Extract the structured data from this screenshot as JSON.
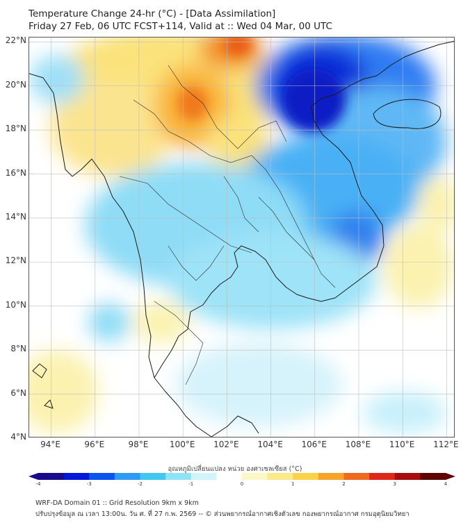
{
  "title": {
    "line1": "Temperature Change 24-hr (°C) - [Data Assimilation]",
    "line2": "Friday 27 Feb, 06 UTC FCST+114, Valid at :: Wed 04 Mar, 00 UTC"
  },
  "map": {
    "lat_labels": [
      "22°N",
      "20°N",
      "18°N",
      "16°N",
      "14°N",
      "12°N",
      "10°N",
      "8°N",
      "6°N",
      "4°N"
    ],
    "lat_values": [
      22,
      20,
      18,
      16,
      14,
      12,
      10,
      8,
      6,
      4
    ],
    "lon_labels": [
      "94°E",
      "96°E",
      "98°E",
      "100°E",
      "102°E",
      "104°E",
      "106°E",
      "108°E",
      "110°E",
      "112°E"
    ],
    "lon_values": [
      94,
      96,
      98,
      100,
      102,
      104,
      106,
      108,
      110,
      112
    ],
    "lat_range": [
      4,
      22.2
    ],
    "lon_range": [
      93,
      112.4
    ]
  },
  "colorbar": {
    "label": "อุณหภูมิเปลี่ยนแปลง หน่วย องศาเซลเซียส (°C)",
    "ticks": [
      "-4",
      "-3",
      "-2",
      "-1",
      "0",
      "1",
      "2",
      "3",
      "4"
    ],
    "tick_values": [
      -4,
      -3,
      -2,
      -1,
      0,
      1,
      2,
      3,
      4
    ],
    "colors": [
      "#1a0a8c",
      "#0018d8",
      "#0a55f0",
      "#2e9bf5",
      "#43c6f0",
      "#8fe3f7",
      "#d2f4fb",
      "#ffffff",
      "#fbf7c6",
      "#fbe98a",
      "#fbd34a",
      "#f7a52a",
      "#ef6a1e",
      "#e0281a",
      "#a80d0d",
      "#5e0404"
    ]
  },
  "footer": {
    "line1": "WRF-DA Domain 01 :: Grid Resolution 9km x 9km",
    "line2": "ปรับปรุงข้อมูล ณ เวลา 13:00น. วัน ศ. ที่ 27 ก.พ. 2569 -- © ส่วนพยากรณ์อากาศเชิงตัวเลข กองพยากรณ์อากาศ กรมอุตุนิยมวิทยา"
  }
}
